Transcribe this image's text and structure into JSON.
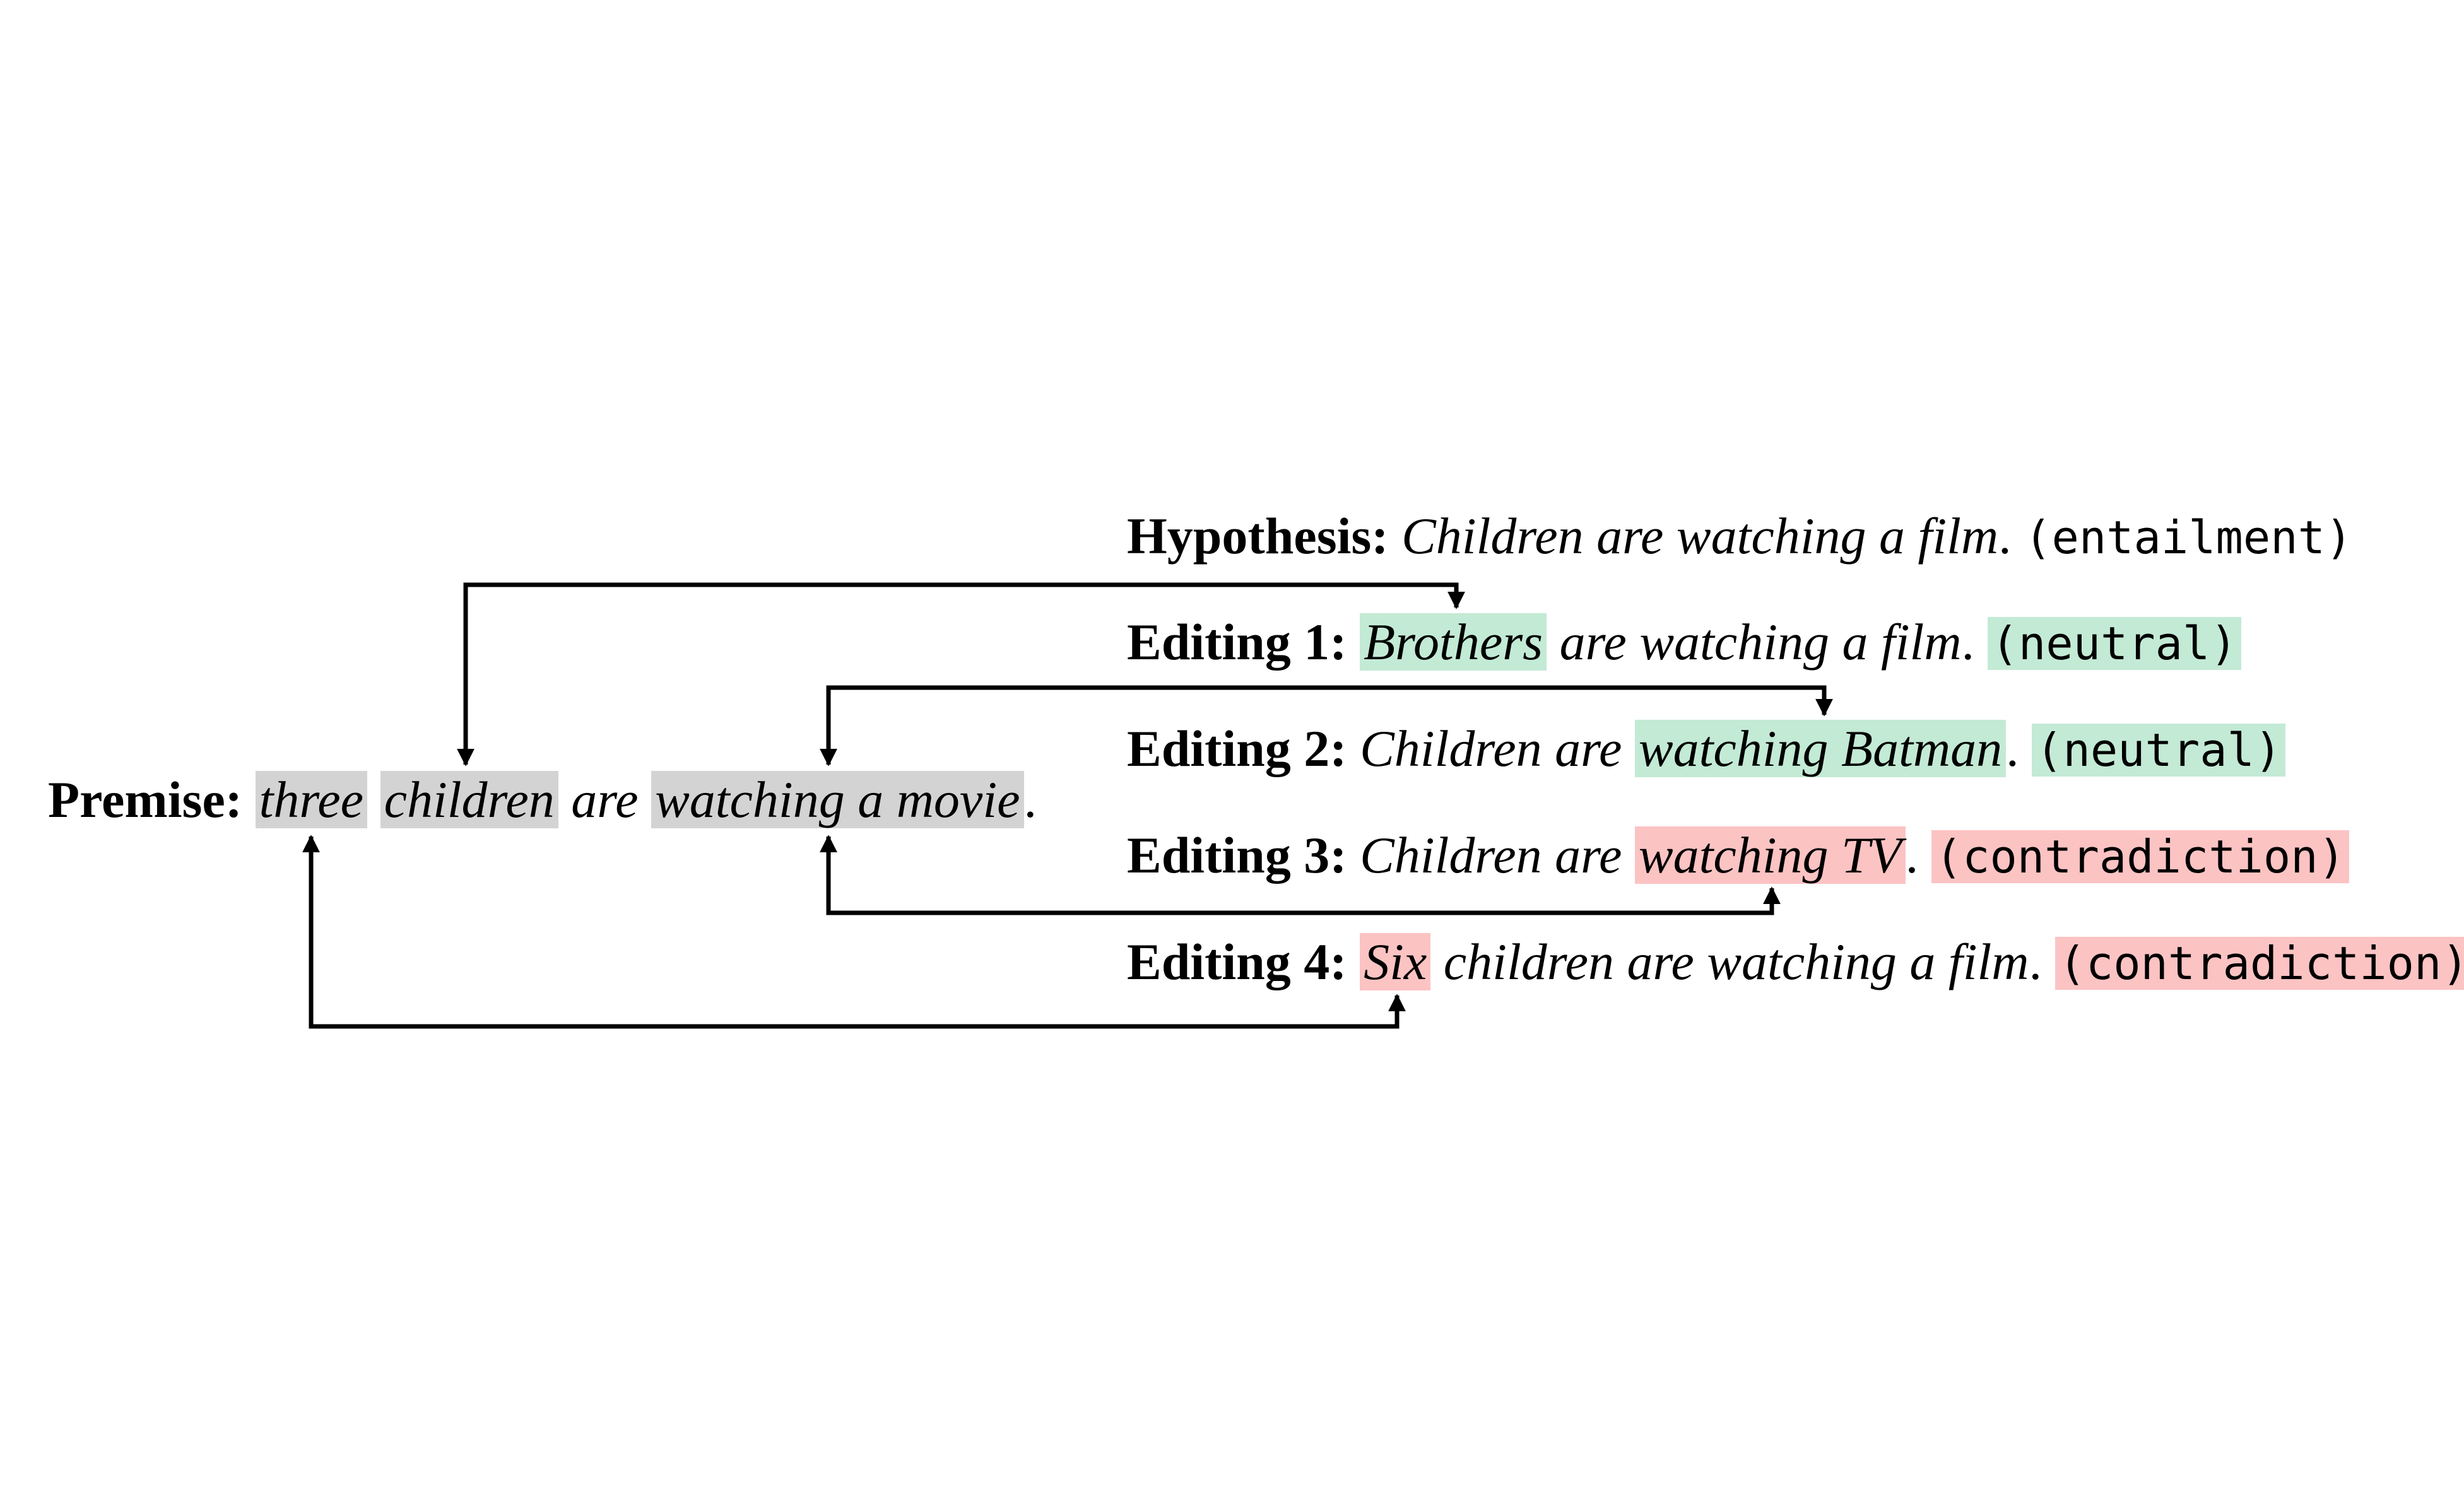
{
  "premise": {
    "label": "Premise:",
    "w1": "three",
    "w2": "children",
    "w3": "are",
    "w4": "watching a movie",
    "end": "."
  },
  "hypothesis": {
    "label": "Hypothesis:",
    "text": "Children are watching a film",
    "end": ".",
    "tag": "(entailment)"
  },
  "edit1": {
    "label": "Editing 1:",
    "changed": "Brothers",
    "rest": "are watching a film",
    "end": ".",
    "tag": "(neutral)"
  },
  "edit2": {
    "label": "Editing 2:",
    "pre": "Children are",
    "changed": "watching Batman",
    "end": ".",
    "tag": "(neutral)"
  },
  "edit3": {
    "label": "Editing 3:",
    "pre": "Children are",
    "changed": "watching TV",
    "end": ".",
    "tag": "(contradiction)"
  },
  "edit4": {
    "label": "Editing 4:",
    "changed": "Six",
    "rest": "children are watching a film",
    "end": ".",
    "tag": "(contradiction)"
  },
  "colors": {
    "premise_highlight": "#d3d3d3",
    "neutral_highlight": "#c3ead5",
    "contradiction_highlight": "#fcc3c3",
    "arrow": "#000000"
  }
}
